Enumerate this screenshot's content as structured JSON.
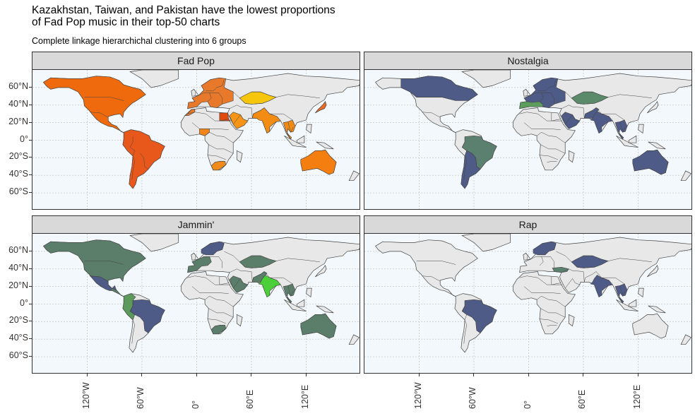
{
  "title_line1": "Kazakhstan, Taiwan, and Pakistan have the lowest proportions",
  "title_line2": "of Fad Pop music in their top-50 charts",
  "subtitle": "Complete linkage hierarchichal clustering into 6 groups",
  "y_axis": {
    "ticks": [
      "60°N",
      "40°N",
      "20°N",
      "0°",
      "20°S",
      "40°S",
      "60°S"
    ],
    "values": [
      60,
      40,
      20,
      0,
      -20,
      -40,
      -60
    ]
  },
  "x_axis": {
    "ticks": [
      "120°W",
      "60°W",
      "0°",
      "60°E",
      "120°E"
    ],
    "values": [
      -120,
      -60,
      0,
      60,
      120
    ]
  },
  "map_range": {
    "lon": [
      -180,
      180
    ],
    "lat": [
      -80,
      80
    ]
  },
  "colors": {
    "land_default": "#e8e8e8",
    "ocean": "#f2f8fb",
    "border": "#444444",
    "grid": "#c8c8c8"
  },
  "panels": [
    {
      "name": "Fad Pop",
      "regions": [
        {
          "name": "North America",
          "fill": "#ee6a0c"
        },
        {
          "name": "South America",
          "fill": "#e8581b"
        },
        {
          "name": "Europe",
          "fill": "#e9792a"
        },
        {
          "name": "Kazakhstan",
          "fill": "#f5c60c"
        },
        {
          "name": "Southern Asia",
          "fill": "#f28c12"
        },
        {
          "name": "Southeast Asia",
          "fill": "#f08a14"
        },
        {
          "name": "Australia",
          "fill": "#f57e10"
        },
        {
          "name": "Japan",
          "fill": "#ef6a22"
        },
        {
          "name": "Egypt",
          "fill": "#e24b0d"
        },
        {
          "name": "South Africa",
          "fill": "#f08a1a"
        },
        {
          "name": "Morocco",
          "fill": "#e8792a"
        },
        {
          "name": "Nigeria",
          "fill": "#f2851a"
        },
        {
          "name": "Saudi Arabia",
          "fill": "#f59416"
        }
      ]
    },
    {
      "name": "Nostalgia",
      "regions": [
        {
          "name": "Canada",
          "fill": "#4e5b87"
        },
        {
          "name": "Europe",
          "fill": "#4e5b87"
        },
        {
          "name": "Brazil",
          "fill": "#5b8070"
        },
        {
          "name": "Southern South America",
          "fill": "#4e5b87"
        },
        {
          "name": "Kazakhstan",
          "fill": "#5a8a6a"
        },
        {
          "name": "Pakistan",
          "fill": "#4e5b87"
        },
        {
          "name": "Saudi Arabia",
          "fill": "#4e5b87"
        },
        {
          "name": "India",
          "fill": "#4e5b87"
        },
        {
          "name": "Southeast Asia",
          "fill": "#4e5b87"
        },
        {
          "name": "Australia",
          "fill": "#4e5b87"
        },
        {
          "name": "Mediterranean",
          "fill": "#5c9c5c"
        }
      ]
    },
    {
      "name": "Jammin'",
      "regions": [
        {
          "name": "North America",
          "fill": "#5b7e6a"
        },
        {
          "name": "Mexico",
          "fill": "#4e5b87"
        },
        {
          "name": "South America West",
          "fill": "#5b9a5b"
        },
        {
          "name": "Brazil",
          "fill": "#4e5b87"
        },
        {
          "name": "Europe West",
          "fill": "#5b7e6a"
        },
        {
          "name": "Scandinavia",
          "fill": "#4e5b87"
        },
        {
          "name": "Kazakhstan",
          "fill": "#5b7e6a"
        },
        {
          "name": "India",
          "fill": "#4bd03a"
        },
        {
          "name": "Pakistan",
          "fill": "#5b7e6a"
        },
        {
          "name": "Southeast Asia",
          "fill": "#5b7e6a"
        },
        {
          "name": "Australia",
          "fill": "#5b7e6a"
        },
        {
          "name": "South Africa",
          "fill": "#5b7e6a"
        },
        {
          "name": "Saudi Arabia",
          "fill": "#5b7e6a"
        }
      ]
    },
    {
      "name": "Rap",
      "regions": [
        {
          "name": "Brazil",
          "fill": "#4e5b87"
        },
        {
          "name": "Kazakhstan",
          "fill": "#4e5b87"
        },
        {
          "name": "India",
          "fill": "#4e5b87"
        },
        {
          "name": "Scandinavia",
          "fill": "#4e5b87"
        },
        {
          "name": "Southeast Asia",
          "fill": "#4e5b87"
        },
        {
          "name": "Turkey",
          "fill": "#5b8070"
        }
      ]
    }
  ]
}
